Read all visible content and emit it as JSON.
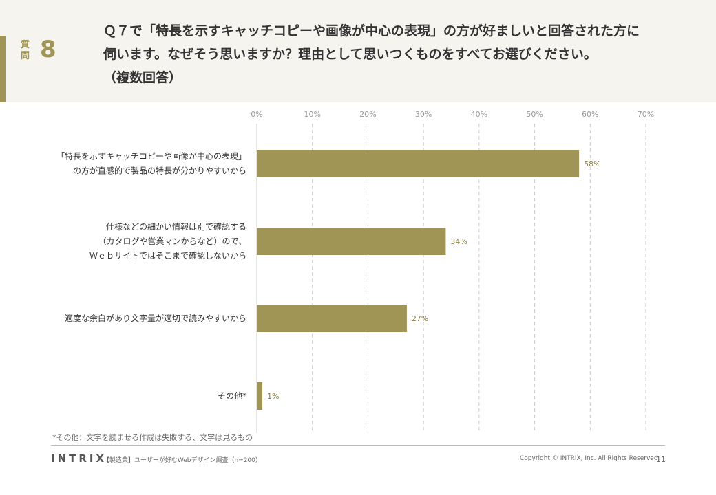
{
  "header": {
    "question_label": "質問",
    "question_number": "8",
    "question_lines": [
      "Ｑ７で「特長を示すキャッチコピーや画像が中心の表現」の方が好ましいと回答された方に",
      "伺います。なぜそう思いますか？理由として思いつくものをすべてお選びください。",
      "（複数回答）"
    ]
  },
  "chart_data": {
    "type": "bar",
    "orientation": "horizontal",
    "categories": [
      [
        "「特長を示すキャッチコピーや画像が中心の表現」",
        "の方が直感的で製品の特長が分かりやすいから"
      ],
      [
        "仕様などの細かい情報は別で確認する",
        "（カタログや営業マンからなど）ので、",
        "Ｗｅｂサイトではそこまで確認しないから"
      ],
      [
        "適度な余白があり文字量が適切で読みやすいから"
      ],
      [
        "その他*"
      ]
    ],
    "values": [
      58,
      34,
      27,
      1
    ],
    "value_labels": [
      "58%",
      "34%",
      "27%",
      "1%"
    ],
    "ticks": [
      0,
      10,
      20,
      30,
      40,
      50,
      60,
      70
    ],
    "tick_labels": [
      "0%",
      "10%",
      "20%",
      "30%",
      "40%",
      "50%",
      "60%",
      "70%"
    ],
    "xlim": [
      0,
      70
    ],
    "grid": true,
    "bar_color": "#a09555",
    "label_color": "#8a7f40"
  },
  "footnote": "*その他：文字を読ませる作成は失敗する、文字は見るもの",
  "footer": {
    "logo": "INTRIX",
    "survey": "【製造業】ユーザーが好むWebデザイン調査（n=200）",
    "copyright": "Copyright © INTRIX, Inc. All Rights Reserved.",
    "page": "11"
  }
}
